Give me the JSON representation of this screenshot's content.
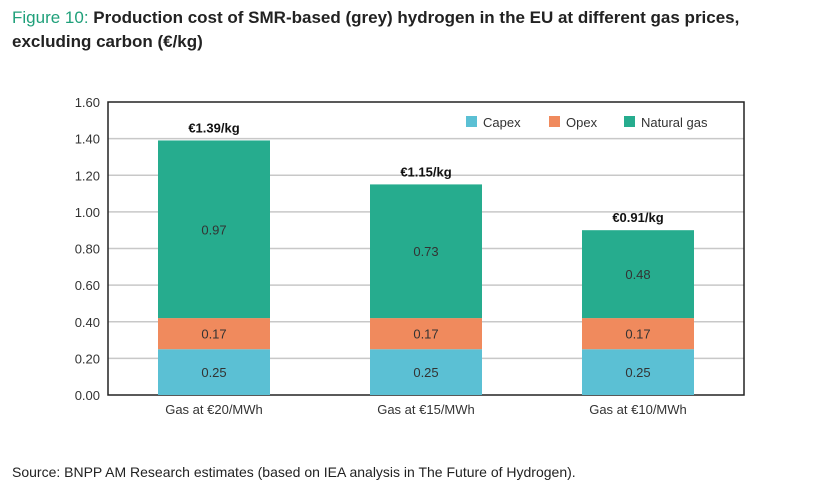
{
  "figure_label": "Figure 10:",
  "title": "Production cost of SMR-based (grey) hydrogen in the EU at different gas prices, excluding carbon (€/kg)",
  "source": "Source: BNPP AM Research estimates (based on IEA analysis in The Future of Hydrogen).",
  "chart_data": {
    "type": "bar",
    "stacked": true,
    "categories": [
      "Gas at €20/MWh",
      "Gas at €15/MWh",
      "Gas at €10/MWh"
    ],
    "series": [
      {
        "name": "Capex",
        "values": [
          0.25,
          0.25,
          0.25
        ],
        "color": "#5bc0d4"
      },
      {
        "name": "Opex",
        "values": [
          0.17,
          0.17,
          0.17
        ],
        "color": "#f08a5d"
      },
      {
        "name": "Natural gas",
        "values": [
          0.97,
          0.73,
          0.48
        ],
        "color": "#26ac8e"
      }
    ],
    "total_labels": [
      "€1.39/kg",
      "€1.15/kg",
      "€0.91/kg"
    ],
    "ylim": [
      0,
      1.6
    ],
    "yticks": [
      "0.00",
      "0.20",
      "0.40",
      "0.60",
      "0.80",
      "1.00",
      "1.20",
      "1.40",
      "1.60"
    ],
    "grid": true,
    "legend_position": "top-right"
  }
}
